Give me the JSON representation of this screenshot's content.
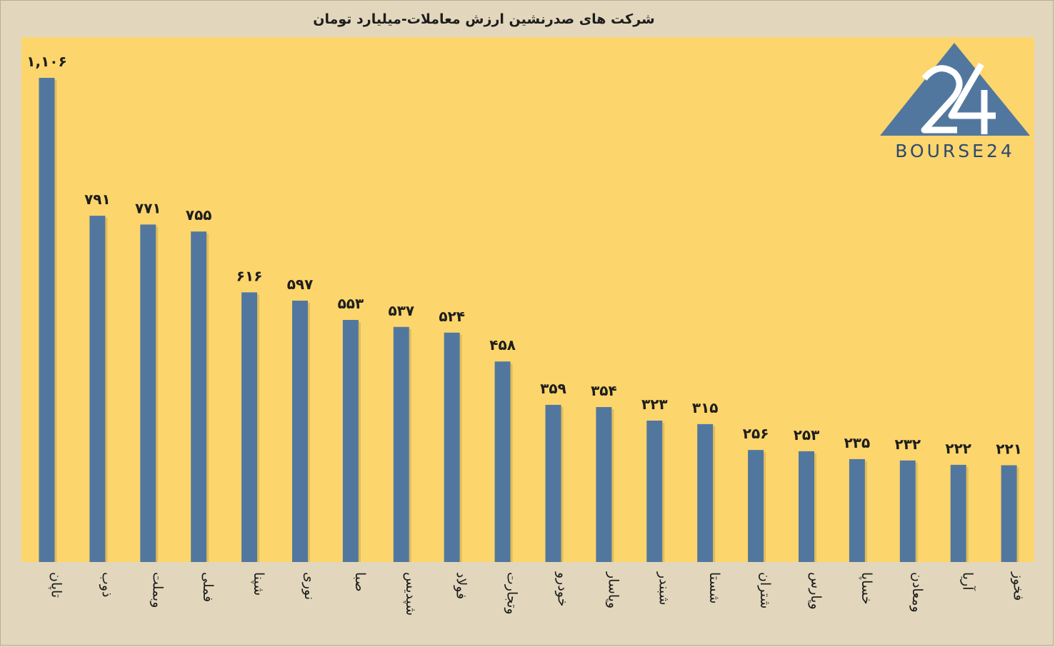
{
  "chart_data": {
    "type": "bar",
    "title": "شرکت های صدرنشین ارزش معاملات-میلیارد تومان",
    "categories": [
      "تاپان",
      "ذوب",
      "وبملت",
      "فملی",
      "شپنا",
      "نوری",
      "صبا",
      "شپدیس",
      "فولاد",
      "وتجارت",
      "خودرو",
      "وپاسار",
      "شبندر",
      "شستا",
      "شتران",
      "وپارس",
      "خساپا",
      "ومعادن",
      "آریا",
      "فخوز"
    ],
    "values": [
      1106,
      791,
      771,
      755,
      616,
      597,
      553,
      537,
      524,
      458,
      359,
      354,
      323,
      315,
      256,
      253,
      235,
      232,
      222,
      221
    ],
    "data_labels": [
      "۱,۱۰۶",
      "۷۹۱",
      "۷۷۱",
      "۷۵۵",
      "۶۱۶",
      "۵۹۷",
      "۵۵۳",
      "۵۳۷",
      "۵۲۴",
      "۴۵۸",
      "۳۵۹",
      "۳۵۴",
      "۳۲۳",
      "۳۱۵",
      "۲۵۶",
      "۲۵۳",
      "۲۳۵",
      "۲۳۲",
      "۲۲۲",
      "۲۲۱"
    ],
    "xlabel": "",
    "ylabel": "",
    "ylim": [
      0,
      1200
    ],
    "grid": false,
    "legend": "none",
    "colors": {
      "bar": "#52779f",
      "plot_background": "#fcd56c",
      "page_background": "#e2d7bd"
    }
  },
  "logo": {
    "text": "BOURSE24",
    "mark": "24",
    "color": "#52779f"
  }
}
